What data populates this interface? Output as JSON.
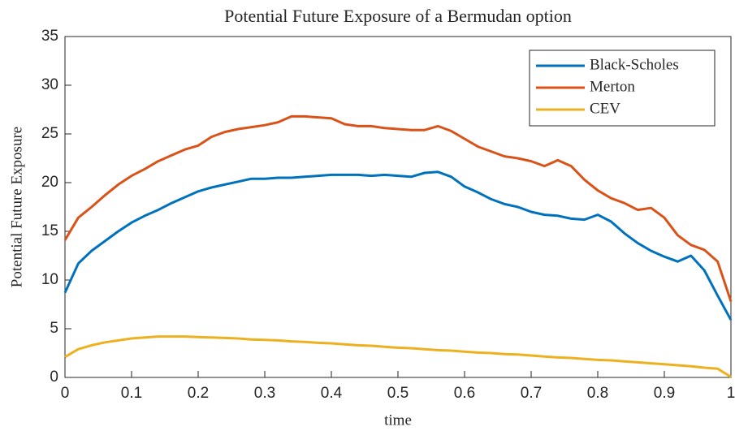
{
  "chart_data": {
    "type": "line",
    "title": "Potential Future Exposure of a Bermudan option",
    "xlabel": "time",
    "ylabel": "Potential Future Exposure",
    "x": [
      0,
      0.02,
      0.04,
      0.06,
      0.08,
      0.1,
      0.12,
      0.14,
      0.16,
      0.18,
      0.2,
      0.22,
      0.24,
      0.26,
      0.28,
      0.3,
      0.32,
      0.34,
      0.36,
      0.38,
      0.4,
      0.42,
      0.44,
      0.46,
      0.48,
      0.5,
      0.52,
      0.54,
      0.56,
      0.58,
      0.6,
      0.62,
      0.64,
      0.66,
      0.68,
      0.7,
      0.72,
      0.74,
      0.76,
      0.78,
      0.8,
      0.82,
      0.84,
      0.86,
      0.88,
      0.9,
      0.92,
      0.94,
      0.96,
      0.98,
      1
    ],
    "series": [
      {
        "name": "Black-Scholes",
        "color": "#0072bd",
        "values": [
          8.7,
          11.7,
          13.0,
          14.0,
          15.0,
          15.9,
          16.6,
          17.2,
          17.9,
          18.5,
          19.1,
          19.5,
          19.8,
          20.1,
          20.4,
          20.4,
          20.5,
          20.5,
          20.6,
          20.7,
          20.8,
          20.8,
          20.8,
          20.7,
          20.8,
          20.7,
          20.6,
          21.0,
          21.1,
          20.6,
          19.6,
          19.0,
          18.3,
          17.8,
          17.5,
          17.0,
          16.7,
          16.6,
          16.3,
          16.2,
          16.7,
          16.0,
          14.8,
          13.8,
          13.0,
          12.4,
          11.9,
          12.5,
          11.0,
          8.4,
          5.9
        ]
      },
      {
        "name": "Merton",
        "color": "#d95319",
        "values": [
          14.1,
          16.4,
          17.5,
          18.7,
          19.8,
          20.7,
          21.4,
          22.2,
          22.8,
          23.4,
          23.8,
          24.7,
          25.2,
          25.5,
          25.7,
          25.9,
          26.2,
          26.8,
          26.8,
          26.7,
          26.6,
          26.0,
          25.8,
          25.8,
          25.6,
          25.5,
          25.4,
          25.4,
          25.8,
          25.3,
          24.5,
          23.7,
          23.2,
          22.7,
          22.5,
          22.2,
          21.7,
          22.3,
          21.7,
          20.3,
          19.2,
          18.4,
          17.9,
          17.2,
          17.4,
          16.4,
          14.6,
          13.6,
          13.1,
          11.9,
          7.8
        ]
      },
      {
        "name": "CEV",
        "color": "#edb120",
        "values": [
          2.1,
          2.9,
          3.3,
          3.6,
          3.8,
          4.0,
          4.1,
          4.2,
          4.2,
          4.2,
          4.15,
          4.1,
          4.05,
          4.0,
          3.9,
          3.85,
          3.8,
          3.7,
          3.65,
          3.55,
          3.5,
          3.4,
          3.3,
          3.25,
          3.15,
          3.05,
          3.0,
          2.9,
          2.8,
          2.75,
          2.65,
          2.55,
          2.5,
          2.4,
          2.35,
          2.25,
          2.15,
          2.05,
          2.0,
          1.9,
          1.8,
          1.75,
          1.65,
          1.55,
          1.45,
          1.35,
          1.25,
          1.15,
          1.0,
          0.9,
          0.05
        ]
      }
    ],
    "xlim": [
      0,
      1
    ],
    "ylim": [
      0,
      35
    ],
    "xticks": [
      0,
      0.1,
      0.2,
      0.3,
      0.4,
      0.5,
      0.6,
      0.7,
      0.8,
      0.9,
      1
    ],
    "yticks": [
      0,
      5,
      10,
      15,
      20,
      25,
      30,
      35
    ],
    "grid": false,
    "legend": "upper right"
  }
}
